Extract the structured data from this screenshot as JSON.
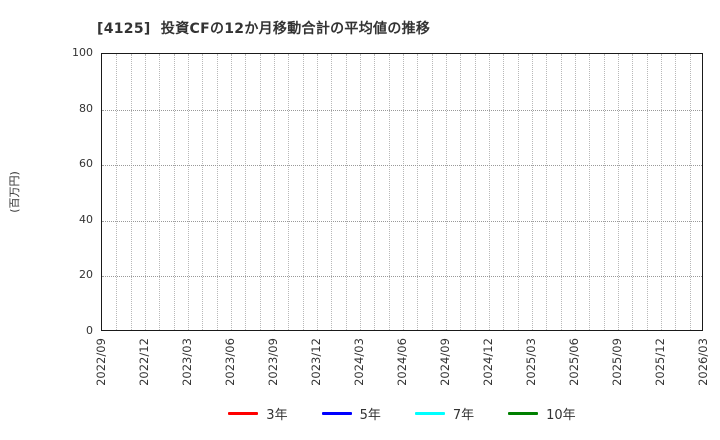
{
  "chart": {
    "title": "[4125]  投資CFの12か月移動合計の平均値の推移",
    "ylabel": "(百万円)"
  },
  "chart_data": {
    "type": "line",
    "title": "[4125]  投資CFの12か月移動合計の平均値の推移",
    "xlabel": "",
    "ylabel": "(百万円)",
    "ylim": [
      0,
      100
    ],
    "yticks": [
      0,
      20,
      40,
      60,
      80,
      100
    ],
    "x_tick_labels": [
      "2022/09",
      "2022/12",
      "2023/03",
      "2023/06",
      "2023/09",
      "2023/12",
      "2024/03",
      "2024/06",
      "2024/09",
      "2024/12",
      "2025/03",
      "2025/06",
      "2025/09",
      "2025/12",
      "2026/03"
    ],
    "months_total": 42,
    "months_per_labeled_tick": 3,
    "grid": true,
    "legend_position": "bottom",
    "series": [
      {
        "name": "3年",
        "color": "#ff0000",
        "values": []
      },
      {
        "name": "5年",
        "color": "#0000ff",
        "values": []
      },
      {
        "name": "7年",
        "color": "#00ffff",
        "values": []
      },
      {
        "name": "10年",
        "color": "#008000",
        "values": []
      }
    ]
  }
}
